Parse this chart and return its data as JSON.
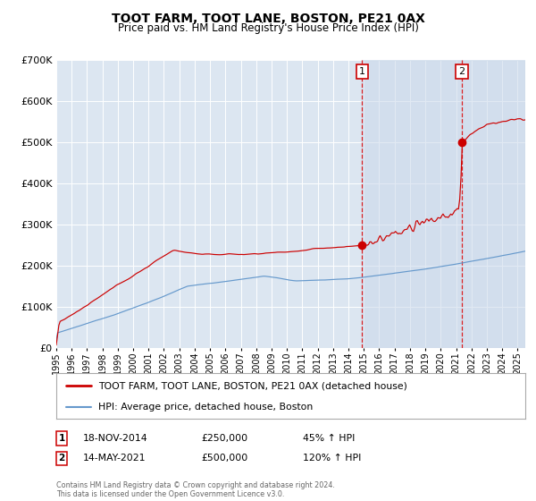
{
  "title": "TOOT FARM, TOOT LANE, BOSTON, PE21 0AX",
  "subtitle": "Price paid vs. HM Land Registry's House Price Index (HPI)",
  "ylim": [
    0,
    700000
  ],
  "yticks": [
    0,
    100000,
    200000,
    300000,
    400000,
    500000,
    600000,
    700000
  ],
  "ytick_labels": [
    "£0",
    "£100K",
    "£200K",
    "£300K",
    "£400K",
    "£500K",
    "£600K",
    "£700K"
  ],
  "xlim_start": 1995.0,
  "xlim_end": 2025.5,
  "xticks": [
    1995,
    1996,
    1997,
    1998,
    1999,
    2000,
    2001,
    2002,
    2003,
    2004,
    2005,
    2006,
    2007,
    2008,
    2009,
    2010,
    2011,
    2012,
    2013,
    2014,
    2015,
    2016,
    2017,
    2018,
    2019,
    2020,
    2021,
    2022,
    2023,
    2024,
    2025
  ],
  "background_color": "#ffffff",
  "plot_bg_color": "#dce6f1",
  "grid_color": "#ffffff",
  "red_line_color": "#cc0000",
  "blue_line_color": "#6699cc",
  "sale1_x": 2014.88,
  "sale1_y": 250000,
  "sale1_label": "1",
  "sale1_date": "18-NOV-2014",
  "sale1_price": "£250,000",
  "sale1_hpi": "45% ↑ HPI",
  "sale2_x": 2021.37,
  "sale2_y": 500000,
  "sale2_label": "2",
  "sale2_date": "14-MAY-2021",
  "sale2_price": "£500,000",
  "sale2_hpi": "120% ↑ HPI",
  "footer": "Contains HM Land Registry data © Crown copyright and database right 2024.\nThis data is licensed under the Open Government Licence v3.0.",
  "legend_line1": "TOOT FARM, TOOT LANE, BOSTON, PE21 0AX (detached house)",
  "legend_line2": "HPI: Average price, detached house, Boston"
}
